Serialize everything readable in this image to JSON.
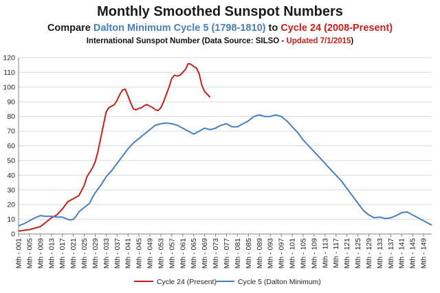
{
  "title": "Monthly Smoothed Sunspot Numbers",
  "subtitle": {
    "prefix": "Compare ",
    "cycle5": "Dalton Minimum Cycle 5 (1798-1810)",
    "mid": " to ",
    "cycle24": "Cycle 24 (2008-Present)"
  },
  "source": {
    "prefix": "International Sunspot Number (Data Source: SILSO - ",
    "updated": "Updated 7/1/2015",
    "suffix": ")"
  },
  "colors": {
    "cycle24": "#c0211d",
    "cycle5": "#4a7ebb",
    "highlight_red": "#c0211d",
    "highlight_blue": "#4a7ebb",
    "grid": "#d9d9d9",
    "axis": "#808080"
  },
  "chart_data": {
    "type": "line",
    "ylim": [
      0,
      120
    ],
    "yticks": [
      0,
      10,
      20,
      30,
      40,
      50,
      60,
      70,
      80,
      90,
      100,
      110,
      120
    ],
    "xlim": [
      1,
      152
    ],
    "xticks": [
      1,
      5,
      9,
      13,
      17,
      21,
      25,
      29,
      33,
      37,
      41,
      45,
      49,
      53,
      57,
      61,
      65,
      69,
      73,
      77,
      81,
      85,
      89,
      93,
      97,
      101,
      105,
      109,
      113,
      117,
      121,
      125,
      129,
      133,
      137,
      141,
      145,
      149
    ],
    "xtick_labels": [
      "Mth - 001",
      "Mth - 005",
      "Mth - 009",
      "Mth - 013",
      "Mth - 017",
      "Mth - 021",
      "Mth - 025",
      "Mth - 029",
      "Mth - 033",
      "Mth - 037",
      "Mth - 041",
      "Mth - 045",
      "Mth - 049",
      "Mth - 053",
      "Mth - 057",
      "Mth - 061",
      "Mth - 065",
      "Mth - 069",
      "Mth - 073",
      "Mth - 077",
      "Mth - 081",
      "Mth - 085",
      "Mth - 089",
      "Mth - 093",
      "Mth - 097",
      "Mth - 101",
      "Mth - 105",
      "Mth - 109",
      "Mth - 113",
      "Mth - 117",
      "Mth - 121",
      "Mth - 125",
      "Mth - 129",
      "Mth - 133",
      "Mth - 137",
      "Mth - 141",
      "Mth - 145",
      "Mth - 149"
    ],
    "grid": true,
    "legend_position": "bottom",
    "series": [
      {
        "name": "Cycle 24 (Present)",
        "color": "#c0211d",
        "points": [
          [
            1,
            2
          ],
          [
            3,
            2.5
          ],
          [
            5,
            3
          ],
          [
            7,
            4
          ],
          [
            9,
            5
          ],
          [
            11,
            8
          ],
          [
            13,
            11
          ],
          [
            15,
            13
          ],
          [
            17,
            17
          ],
          [
            19,
            22
          ],
          [
            21,
            24
          ],
          [
            23,
            26
          ],
          [
            25,
            33
          ],
          [
            26,
            39
          ],
          [
            27,
            42
          ],
          [
            28,
            45
          ],
          [
            29,
            49
          ],
          [
            30,
            56
          ],
          [
            31,
            65
          ],
          [
            32,
            74
          ],
          [
            33,
            83
          ],
          [
            34,
            86
          ],
          [
            35,
            87
          ],
          [
            36,
            88
          ],
          [
            37,
            91
          ],
          [
            38,
            95
          ],
          [
            39,
            98
          ],
          [
            40,
            98.5
          ],
          [
            41,
            94
          ],
          [
            42,
            89
          ],
          [
            43,
            85
          ],
          [
            44,
            84.5
          ],
          [
            45,
            85.5
          ],
          [
            46,
            86
          ],
          [
            47,
            87.5
          ],
          [
            48,
            88
          ],
          [
            49,
            87
          ],
          [
            50,
            86
          ],
          [
            51,
            84.5
          ],
          [
            52,
            84
          ],
          [
            53,
            86
          ],
          [
            54,
            90
          ],
          [
            55,
            95
          ],
          [
            56,
            100
          ],
          [
            57,
            106
          ],
          [
            58,
            108
          ],
          [
            59,
            107.5
          ],
          [
            60,
            108
          ],
          [
            61,
            110
          ],
          [
            62,
            112
          ],
          [
            63,
            116
          ],
          [
            64,
            115.5
          ],
          [
            65,
            114
          ],
          [
            66,
            113
          ],
          [
            67,
            109
          ],
          [
            68,
            101
          ],
          [
            69,
            97
          ],
          [
            70,
            95
          ],
          [
            71,
            93
          ]
        ]
      },
      {
        "name": "Cycle 5 (Dalton Minimum)",
        "color": "#4a7ebb",
        "points": [
          [
            1,
            5.5
          ],
          [
            3,
            7
          ],
          [
            5,
            9
          ],
          [
            7,
            11
          ],
          [
            9,
            12.5
          ],
          [
            11,
            12
          ],
          [
            13,
            12
          ],
          [
            15,
            11.5
          ],
          [
            17,
            11.5
          ],
          [
            19,
            10
          ],
          [
            20,
            9.5
          ],
          [
            21,
            10
          ],
          [
            22,
            12
          ],
          [
            23,
            15
          ],
          [
            25,
            18
          ],
          [
            27,
            21
          ],
          [
            28,
            25
          ],
          [
            29,
            28
          ],
          [
            31,
            33
          ],
          [
            33,
            39
          ],
          [
            35,
            43
          ],
          [
            37,
            48
          ],
          [
            39,
            53
          ],
          [
            41,
            58
          ],
          [
            43,
            62
          ],
          [
            45,
            65
          ],
          [
            47,
            68
          ],
          [
            49,
            71
          ],
          [
            51,
            74
          ],
          [
            53,
            75
          ],
          [
            55,
            75.5
          ],
          [
            57,
            75
          ],
          [
            59,
            74
          ],
          [
            61,
            72
          ],
          [
            63,
            70
          ],
          [
            65,
            68
          ],
          [
            67,
            70
          ],
          [
            69,
            72
          ],
          [
            71,
            71
          ],
          [
            73,
            72
          ],
          [
            75,
            74
          ],
          [
            77,
            75
          ],
          [
            79,
            73
          ],
          [
            81,
            73
          ],
          [
            83,
            75
          ],
          [
            85,
            77
          ],
          [
            87,
            80
          ],
          [
            89,
            81
          ],
          [
            91,
            80
          ],
          [
            93,
            80
          ],
          [
            95,
            81
          ],
          [
            97,
            80
          ],
          [
            99,
            77
          ],
          [
            101,
            73
          ],
          [
            103,
            69
          ],
          [
            105,
            64
          ],
          [
            107,
            60
          ],
          [
            109,
            56
          ],
          [
            111,
            52
          ],
          [
            113,
            48
          ],
          [
            115,
            44
          ],
          [
            117,
            40
          ],
          [
            119,
            36
          ],
          [
            121,
            31
          ],
          [
            123,
            26
          ],
          [
            125,
            21
          ],
          [
            127,
            16
          ],
          [
            129,
            13
          ],
          [
            131,
            11
          ],
          [
            133,
            11.5
          ],
          [
            135,
            10.5
          ],
          [
            137,
            11
          ],
          [
            139,
            12.5
          ],
          [
            141,
            14.5
          ],
          [
            143,
            15
          ],
          [
            145,
            13
          ],
          [
            147,
            11
          ],
          [
            149,
            9
          ],
          [
            151,
            7
          ],
          [
            152,
            6
          ]
        ]
      }
    ]
  }
}
